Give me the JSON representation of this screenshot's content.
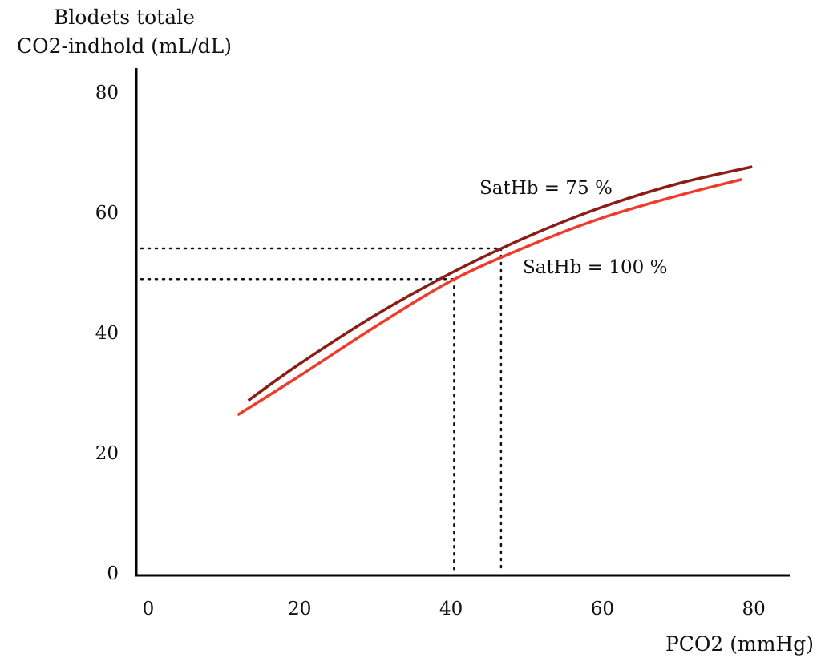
{
  "chart_data": {
    "type": "line",
    "ylabel_lines": [
      "Blodets totale",
      "CO2-indhold (mL/dL)"
    ],
    "xlabel": "PCO2 (mmHg)",
    "xlim": [
      0,
      85
    ],
    "ylim": [
      0,
      85
    ],
    "xticks": [
      0,
      20,
      40,
      60,
      80
    ],
    "yticks": [
      0,
      20,
      40,
      60,
      80
    ],
    "grid": false,
    "series": [
      {
        "name": "SatHb = 75 %",
        "color": "#8b1c16",
        "x": [
          13.2,
          20,
          30,
          40,
          50,
          60,
          70,
          79.8
        ],
        "y": [
          28.7,
          34.8,
          42.9,
          49.9,
          55.9,
          60.9,
          64.8,
          67.6
        ]
      },
      {
        "name": "SatHb = 100 %",
        "color": "#ee3b2b",
        "x": [
          11.8,
          20,
          30,
          40,
          50,
          60,
          70,
          78.4
        ],
        "y": [
          26.3,
          32.8,
          41.0,
          48.6,
          54.3,
          59.1,
          62.8,
          65.5
        ]
      }
    ],
    "reference_lines": [
      {
        "x": 46.6,
        "y": 54.0,
        "style": "dotted"
      },
      {
        "x": 40.4,
        "y": 48.9,
        "style": "dotted"
      }
    ]
  }
}
